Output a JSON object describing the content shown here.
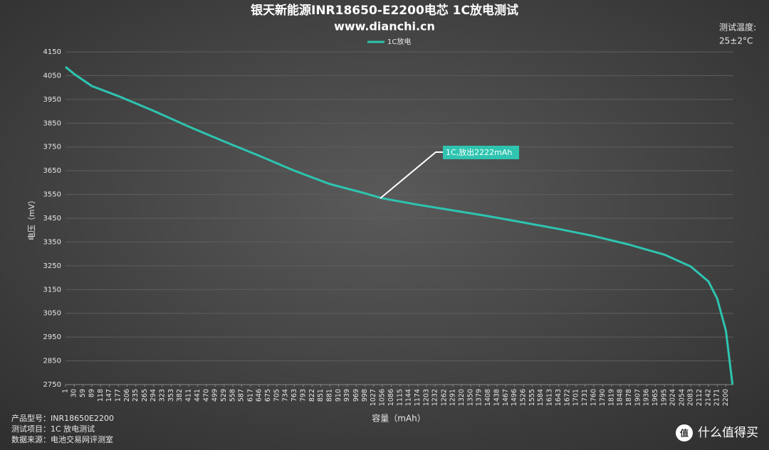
{
  "chart_data": {
    "type": "line",
    "title": "银天新能源INR18650-E2200电芯 1C放电测试",
    "subtitle": "www.dianchi.cn",
    "note_title": "测试温度:",
    "note_value": "25±2°C",
    "x_label": "容量（mAh）",
    "y_label": "电压（mV）",
    "annotation": "1C,放出2222mAh",
    "footer": [
      "产品型号：INR18650E2200",
      "测试项目：1C 放电测试",
      "数据来源：电池交易网评测室"
    ],
    "watermark": "什么值得买",
    "watermark_icon": "值",
    "x": [
      1,
      30,
      89,
      177,
      294,
      411,
      529,
      646,
      763,
      881,
      998,
      1056,
      1174,
      1291,
      1408,
      1526,
      1643,
      1760,
      1878,
      1995,
      2083,
      2142,
      2171,
      2200,
      2222
    ],
    "series": [
      {
        "name": "1C放电",
        "color": "#2ec4b0",
        "values": [
          4087,
          4057,
          4006,
          3964,
          3902,
          3836,
          3773,
          3713,
          3650,
          3594,
          3555,
          3534,
          3507,
          3483,
          3459,
          3432,
          3405,
          3375,
          3339,
          3297,
          3247,
          3184,
          3112,
          2977,
          2750
        ]
      }
    ],
    "xlim": [
      1,
      2225
    ],
    "xticks": [
      1,
      30,
      59,
      89,
      118,
      147,
      177,
      206,
      235,
      265,
      294,
      323,
      353,
      382,
      411,
      441,
      470,
      499,
      529,
      558,
      587,
      617,
      646,
      675,
      705,
      734,
      763,
      793,
      822,
      851,
      881,
      910,
      939,
      969,
      998,
      1027,
      1056,
      1086,
      1115,
      1144,
      1174,
      1203,
      1232,
      1262,
      1291,
      1320,
      1350,
      1379,
      1408,
      1438,
      1467,
      1496,
      1526,
      1555,
      1584,
      1613,
      1643,
      1672,
      1701,
      1731,
      1760,
      1790,
      1819,
      1848,
      1878,
      1907,
      1936,
      1965,
      1995,
      2024,
      2054,
      2083,
      2112,
      2142,
      2171,
      2200
    ],
    "ylim": [
      2750,
      4150
    ],
    "yticks": [
      2750,
      2850,
      2950,
      3050,
      3150,
      3250,
      3350,
      3450,
      3550,
      3650,
      3750,
      3850,
      3950,
      4050,
      4150
    ],
    "grid": true
  }
}
